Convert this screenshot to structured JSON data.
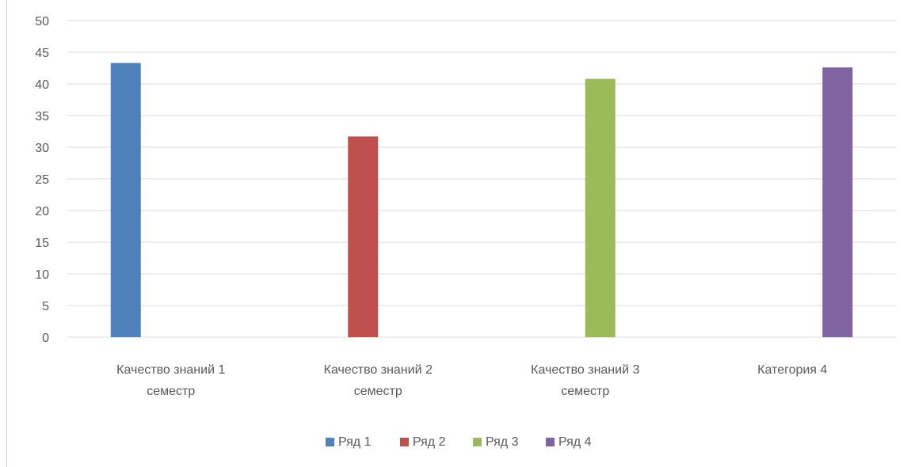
{
  "chart_data": {
    "type": "bar",
    "categories": [
      [
        "Качество знаний 1",
        "семестр"
      ],
      [
        "Качество знаний 2",
        "семестр"
      ],
      [
        "Качество знаний 3",
        "семестр"
      ],
      [
        "Категория 4"
      ]
    ],
    "series": [
      {
        "name": "Ряд 1",
        "color": "#4f81bd",
        "values": [
          43.3,
          null,
          null,
          null
        ]
      },
      {
        "name": "Ряд 2",
        "color": "#c0504d",
        "values": [
          null,
          31.7,
          null,
          null
        ]
      },
      {
        "name": "Ряд 3",
        "color": "#9bbb59",
        "values": [
          null,
          null,
          40.8,
          null
        ]
      },
      {
        "name": "Ряд 4",
        "color": "#8064a2",
        "values": [
          null,
          null,
          null,
          42.6
        ]
      }
    ],
    "ylim": [
      0,
      50
    ],
    "yticks": [
      "0",
      "5",
      "10",
      "15",
      "20",
      "25",
      "30",
      "35",
      "40",
      "45",
      "50"
    ],
    "grid": true,
    "legend_position": "bottom",
    "gridline_color": "#d9d9d9"
  }
}
